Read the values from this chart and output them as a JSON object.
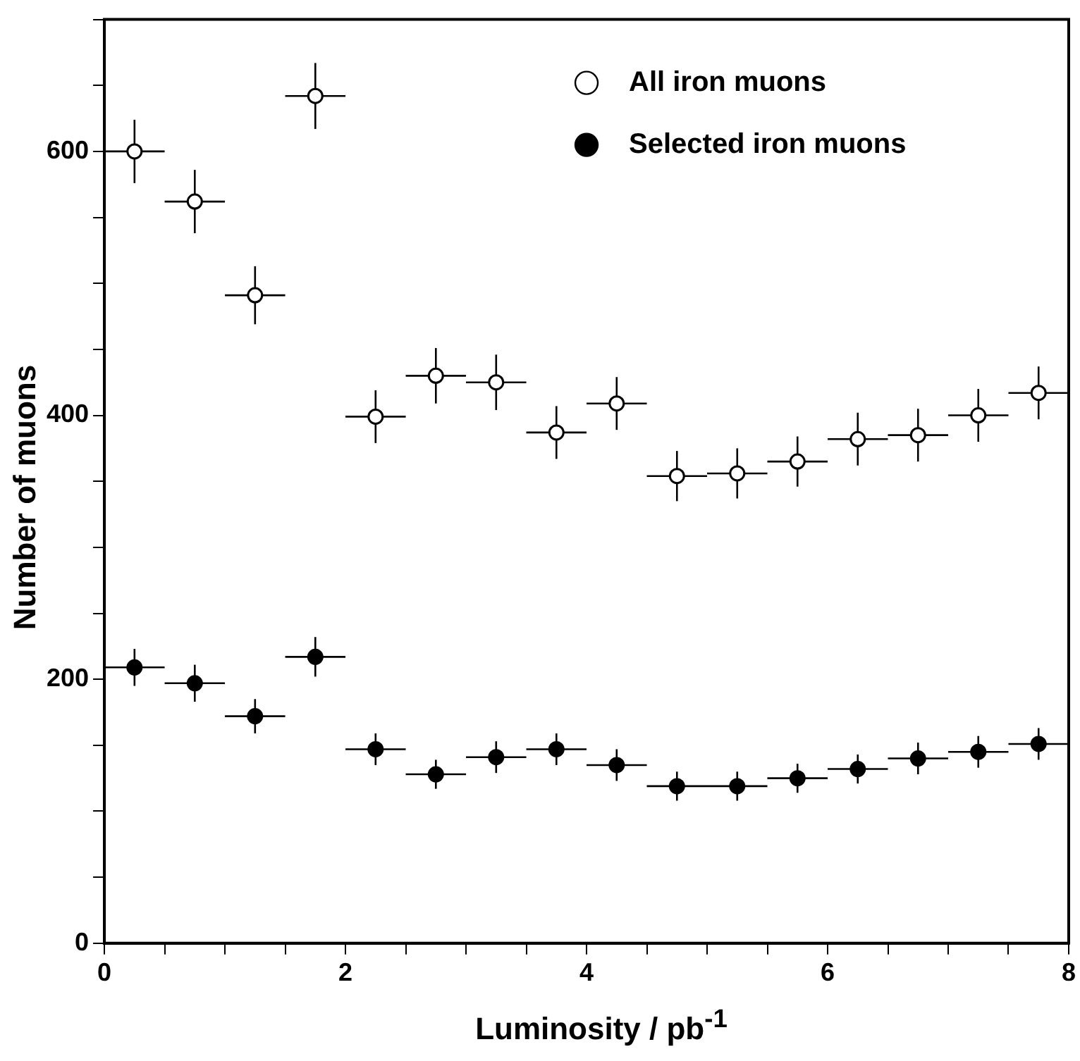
{
  "chart_data": {
    "type": "scatter",
    "xlabel": "Luminosity / pb$^{-1}$",
    "ylabel": "Number of muons",
    "x": [
      0.25,
      0.75,
      1.25,
      1.75,
      2.25,
      2.75,
      3.25,
      3.75,
      4.25,
      4.75,
      5.25,
      5.75,
      6.25,
      6.75,
      7.25,
      7.75
    ],
    "series": [
      {
        "name": "All iron muons",
        "color": "#ffffff",
        "values": [
          600,
          562,
          491,
          642,
          399,
          430,
          425,
          387,
          409,
          354,
          356,
          365,
          382,
          385,
          400,
          417
        ],
        "errors": [
          24,
          24,
          22,
          25,
          20,
          21,
          21,
          20,
          20,
          19,
          19,
          19,
          20,
          20,
          20,
          20
        ],
        "xerrors": [
          0.25,
          0.25,
          0.25,
          0.25,
          0.25,
          0.25,
          0.25,
          0.25,
          0.25,
          0.25,
          0.25,
          0.25,
          0.25,
          0.25,
          0.25,
          0.25
        ]
      },
      {
        "name": "Selected iron muons",
        "color": "#000000",
        "values": [
          209,
          197,
          172,
          217,
          147,
          128,
          141,
          147,
          135,
          119,
          119,
          125,
          132,
          140,
          145,
          151
        ],
        "errors": [
          14,
          14,
          13,
          15,
          12,
          11,
          12,
          12,
          12,
          11,
          11,
          11,
          11,
          12,
          12,
          12
        ],
        "xerrors": [
          0.25,
          0.25,
          0.25,
          0.25,
          0.25,
          0.25,
          0.25,
          0.25,
          0.25,
          0.25,
          0.25,
          0.25,
          0.25,
          0.25,
          0.25,
          0.25
        ]
      }
    ],
    "xlim": [
      0,
      8
    ],
    "xticks": [
      0,
      {
        "value": 0.5,
        "label": null
      },
      {
        "value": 1,
        "label": null
      },
      {
        "value": 1.5,
        "label": null
      },
      2,
      {
        "value": 2.5,
        "label": null
      },
      {
        "value": 3,
        "label": null
      },
      {
        "value": 3.5,
        "label": null
      },
      4,
      {
        "value": 4.5,
        "label": null
      },
      {
        "value": 5,
        "label": null
      },
      {
        "value": 5.5,
        "label": null
      },
      6,
      {
        "value": 6.5,
        "label": null
      },
      {
        "value": 7,
        "label": null
      },
      {
        "value": 7.5,
        "label": null
      },
      8
    ],
    "ylim": [
      0,
      700
    ],
    "yticks": [
      0,
      {
        "value": 50,
        "label": null
      },
      {
        "value": 100,
        "label": null
      },
      {
        "value": 150,
        "label": null
      },
      200,
      {
        "value": 250,
        "label": null
      },
      {
        "value": 300,
        "label": null
      },
      {
        "value": 350,
        "label": null
      },
      400,
      {
        "value": 450,
        "label": null
      },
      {
        "value": 500,
        "label": null
      },
      {
        "value": 550,
        "label": null
      },
      600,
      {
        "value": 650,
        "label": null
      },
      {
        "value": 700,
        "label": null
      }
    ],
    "grid": false,
    "legend": "top right",
    "marker": "circle"
  }
}
